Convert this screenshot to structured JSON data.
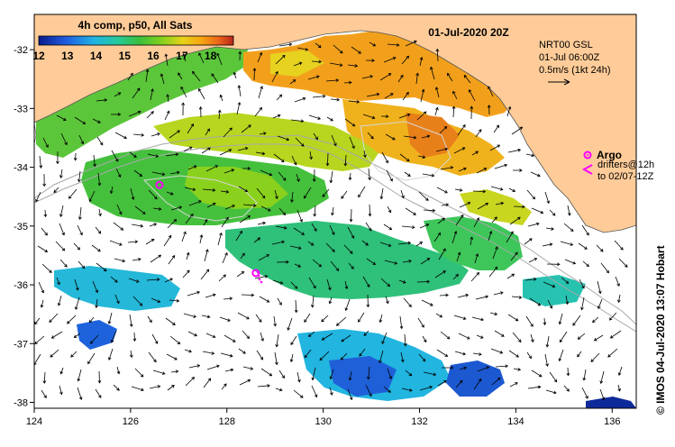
{
  "header": {
    "composite_label": "4h comp, p50, All Sats",
    "date_label": "01-Jul-2020 20Z"
  },
  "colorbar": {
    "ticks": [
      "12",
      "13",
      "14",
      "15",
      "16",
      "17",
      "18"
    ],
    "min": 12,
    "max": 18.8,
    "colors": [
      "#0a1a8c",
      "#1f5ce0",
      "#21b2e6",
      "#24c9a0",
      "#3bbf3a",
      "#8ad11d",
      "#e8d21a",
      "#f5a311",
      "#e8601a",
      "#b4261b"
    ]
  },
  "current_info": {
    "line1": "NRT00 GSL",
    "line2": "01-Jul 06:00Z",
    "line3": "0.5m/s (1kt 24h)"
  },
  "argo_legend": {
    "label": "Argo",
    "drifters_line1": "drifters@12h",
    "drifters_line2": "to 02/07-12Z",
    "marker_color": "#ff00ff"
  },
  "credit": "© IMOS 04-Jul-2020 13:07 Hobart",
  "axes": {
    "x_ticks": [
      "124",
      "126",
      "128",
      "130",
      "132",
      "134",
      "136"
    ],
    "y_ticks": [
      "-32",
      "-33",
      "-34",
      "-35",
      "-36",
      "-37",
      "-38"
    ],
    "lon_range": [
      124,
      136.5
    ],
    "lat_range": [
      -31.4,
      -38.1
    ]
  },
  "colors": {
    "land": "#ffcc99",
    "ocean": "#ffffff",
    "frame": "#000000"
  },
  "argo_floats": [
    {
      "lon": 126.6,
      "lat": -34.3
    },
    {
      "lon": 128.6,
      "lat": -35.8
    }
  ]
}
